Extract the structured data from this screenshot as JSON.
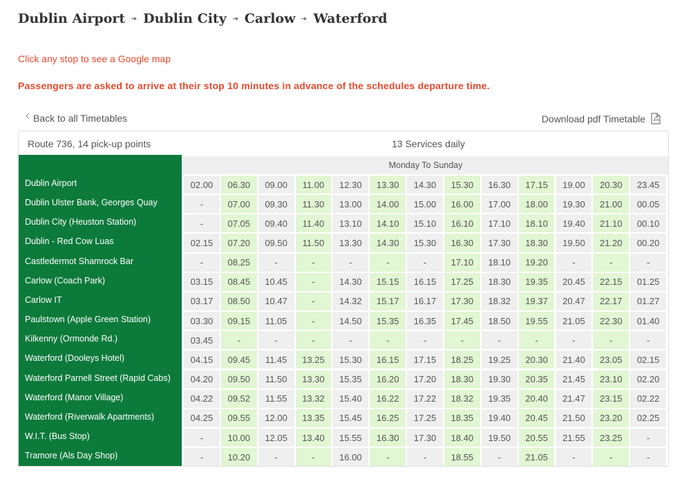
{
  "header": {
    "title_stops": [
      "Dublin Airport",
      "Dublin City",
      "Carlow",
      "Waterford"
    ],
    "map_hint": "Click any stop to see a Google map",
    "notice": "Passengers are asked to arrive at their stop 10 minutes in advance of the schedules departure time."
  },
  "nav": {
    "back": "Back to all Timetables",
    "download": "Download pdf Timetable"
  },
  "table": {
    "route": "Route 736, 14 pick-up points",
    "services": "13 Services daily",
    "days": "Monday To Sunday",
    "rows": [
      {
        "stop": "Dublin Airport",
        "times": [
          "02.00",
          "06.30",
          "09.00",
          "11.00",
          "12.30",
          "13.30",
          "14.30",
          "15.30",
          "16.30",
          "17.15",
          "19.00",
          "20.30",
          "23.45"
        ]
      },
      {
        "stop": "Dublin Ulster Bank, Georges Quay",
        "times": [
          "-",
          "07.00",
          "09.30",
          "11.30",
          "13.00",
          "14.00",
          "15.00",
          "16.00",
          "17.00",
          "18.00",
          "19.30",
          "21.00",
          "00.05"
        ]
      },
      {
        "stop": "Dublin City (Heuston Station)",
        "times": [
          "-",
          "07.05",
          "09.40",
          "11.40",
          "13.10",
          "14.10",
          "15.10",
          "16.10",
          "17.10",
          "18.10",
          "19.40",
          "21.10",
          "00.10"
        ]
      },
      {
        "stop": "Dublin - Red Cow Luas",
        "times": [
          "02.15",
          "07.20",
          "09.50",
          "11.50",
          "13.30",
          "14.30",
          "15.30",
          "16.30",
          "17.30",
          "18.30",
          "19.50",
          "21.20",
          "00.20"
        ]
      },
      {
        "stop": "Castledermot Shamrock Bar",
        "times": [
          "-",
          "08.25",
          "-",
          "-",
          "-",
          "-",
          "-",
          "17.10",
          "18.10",
          "19.20",
          "-",
          "-",
          "-"
        ]
      },
      {
        "stop": "Carlow (Coach Park)",
        "times": [
          "03.15",
          "08.45",
          "10.45",
          "-",
          "14.30",
          "15.15",
          "16.15",
          "17.25",
          "18.30",
          "19.35",
          "20.45",
          "22.15",
          "01.25"
        ]
      },
      {
        "stop": "Carlow IT",
        "times": [
          "03.17",
          "08.50",
          "10.47",
          "-",
          "14.32",
          "15.17",
          "16.17",
          "17.30",
          "18.32",
          "19.37",
          "20.47",
          "22.17",
          "01.27"
        ]
      },
      {
        "stop": "Paulstown (Apple Green Station)",
        "times": [
          "03.30",
          "09.15",
          "11.05",
          "-",
          "14.50",
          "15.35",
          "16.35",
          "17.45",
          "18.50",
          "19.55",
          "21.05",
          "22.30",
          "01.40"
        ]
      },
      {
        "stop": "Kilkenny (Ormonde Rd.)",
        "times": [
          "03.45",
          "-",
          "-",
          "-",
          "-",
          "-",
          "-",
          "-",
          "-",
          "-",
          "-",
          "-",
          "-"
        ]
      },
      {
        "stop": "Waterford (Dooleys Hotel)",
        "times": [
          "04.15",
          "09.45",
          "11.45",
          "13.25",
          "15.30",
          "16.15",
          "17.15",
          "18.25",
          "19.25",
          "20.30",
          "21.40",
          "23.05",
          "02.15"
        ]
      },
      {
        "stop": "Waterford Parnell Street (Rapid Cabs)",
        "times": [
          "04.20",
          "09.50",
          "11.50",
          "13.30",
          "15.35",
          "16.20",
          "17.20",
          "18.30",
          "19.30",
          "20.35",
          "21.45",
          "23.10",
          "02.20"
        ]
      },
      {
        "stop": "Waterford (Manor Village)",
        "times": [
          "04.22",
          "09.52",
          "11.55",
          "13.32",
          "15.40",
          "16.22",
          "17.22",
          "18.32",
          "19.35",
          "20.40",
          "21.47",
          "23.15",
          "02.22"
        ]
      },
      {
        "stop": "Waterford (Riverwalk Apartments)",
        "times": [
          "04.25",
          "09.55",
          "12.00",
          "13.35",
          "15.45",
          "16.25",
          "17.25",
          "18.35",
          "19.40",
          "20.45",
          "21.50",
          "23.20",
          "02.25"
        ]
      },
      {
        "stop": "W.I.T. (Bus Stop)",
        "times": [
          "-",
          "10.00",
          "12.05",
          "13.40",
          "15.55",
          "16.30",
          "17.30",
          "18.40",
          "19.50",
          "20.55",
          "21.55",
          "23.25",
          "-"
        ]
      },
      {
        "stop": "Tramore (Als Day Shop)",
        "times": [
          "-",
          "10.20",
          "-",
          "-",
          "16.00",
          "-",
          "-",
          "18.55",
          "-",
          "21.05",
          "-",
          "-",
          "-"
        ]
      }
    ]
  }
}
